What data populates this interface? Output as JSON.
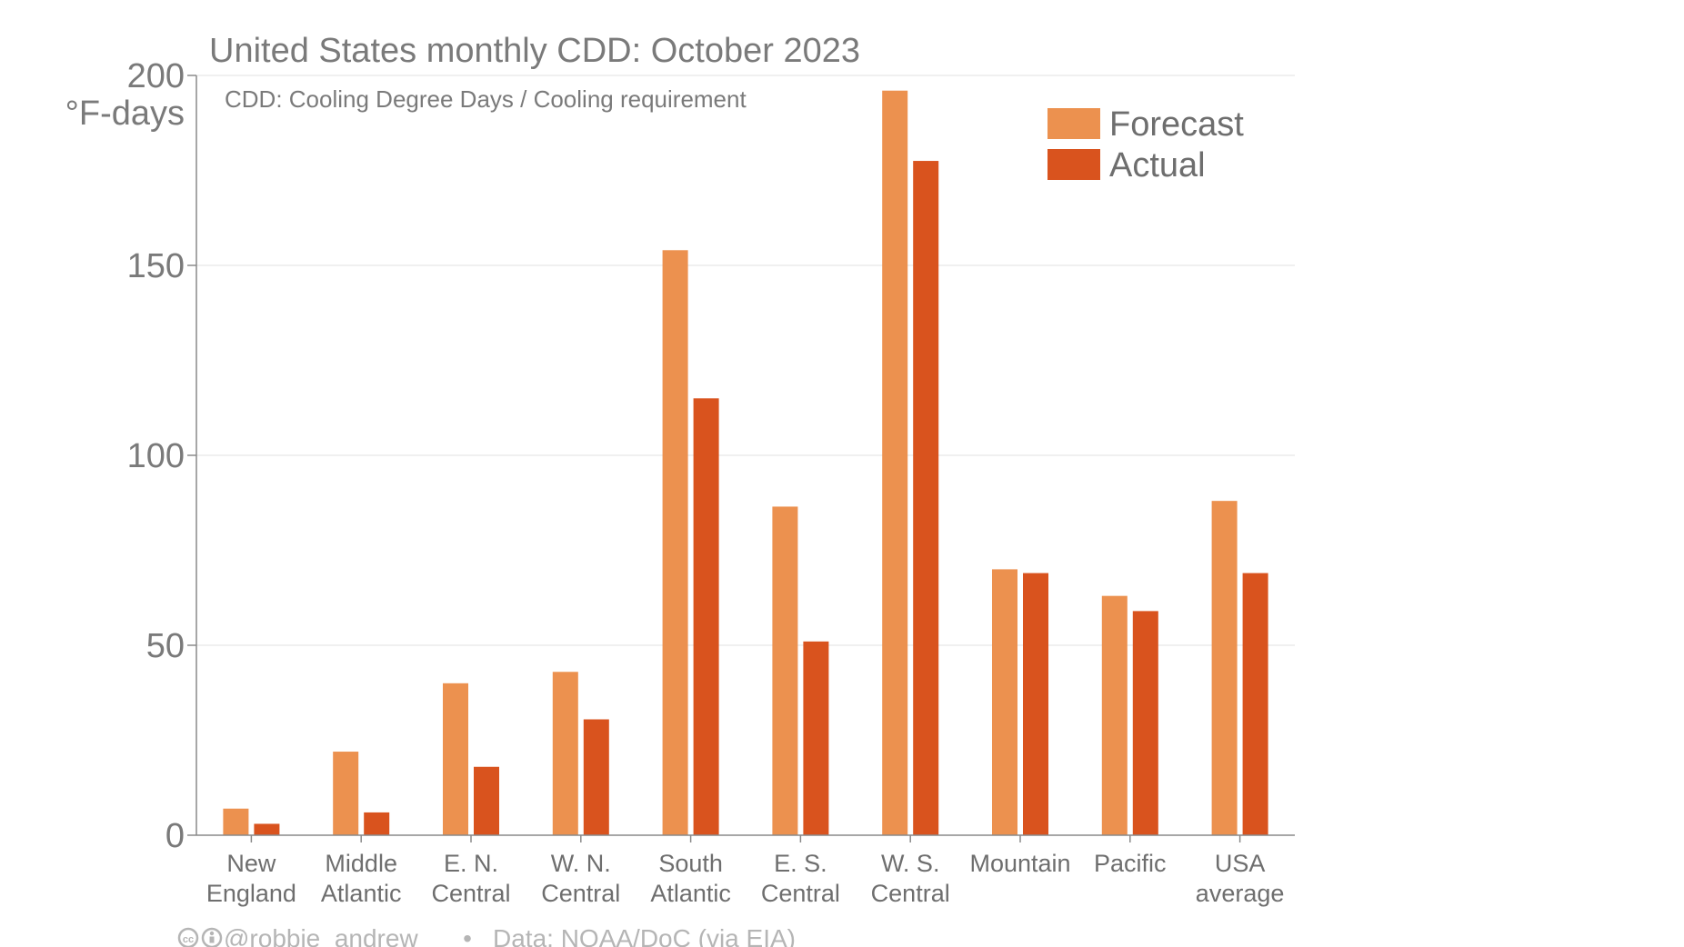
{
  "chart_data": {
    "type": "bar",
    "title": "United States monthly CDD: October 2023",
    "subtitle": "CDD: Cooling Degree Days / Cooling requirement",
    "ylabel": "°F-days",
    "ylim": [
      0,
      200
    ],
    "yticks": [
      "0",
      "50",
      "100",
      "150",
      "200"
    ],
    "categories": [
      [
        "New",
        "England"
      ],
      [
        "Middle",
        "Atlantic"
      ],
      [
        "E. N.",
        "Central"
      ],
      [
        "W. N.",
        "Central"
      ],
      [
        "South",
        "Atlantic"
      ],
      [
        "E. S.",
        "Central"
      ],
      [
        "W. S.",
        "Central"
      ],
      [
        "Mountain"
      ],
      [
        "Pacific"
      ],
      [
        "USA",
        "average"
      ]
    ],
    "series": [
      {
        "name": "Forecast",
        "color": "#ec914f",
        "values": [
          7,
          22,
          40,
          43,
          154,
          86.5,
          196,
          70,
          63,
          88
        ]
      },
      {
        "name": "Actual",
        "color": "#d9531e",
        "values": [
          3,
          6,
          18,
          30.5,
          115,
          51,
          177.5,
          69,
          59,
          69
        ]
      }
    ],
    "grid": true,
    "legend_position": "top-right"
  },
  "footer": {
    "credit": "@robbie_andrew",
    "separator": "•",
    "source": "Data: NOAA/DoC (via EIA)"
  }
}
